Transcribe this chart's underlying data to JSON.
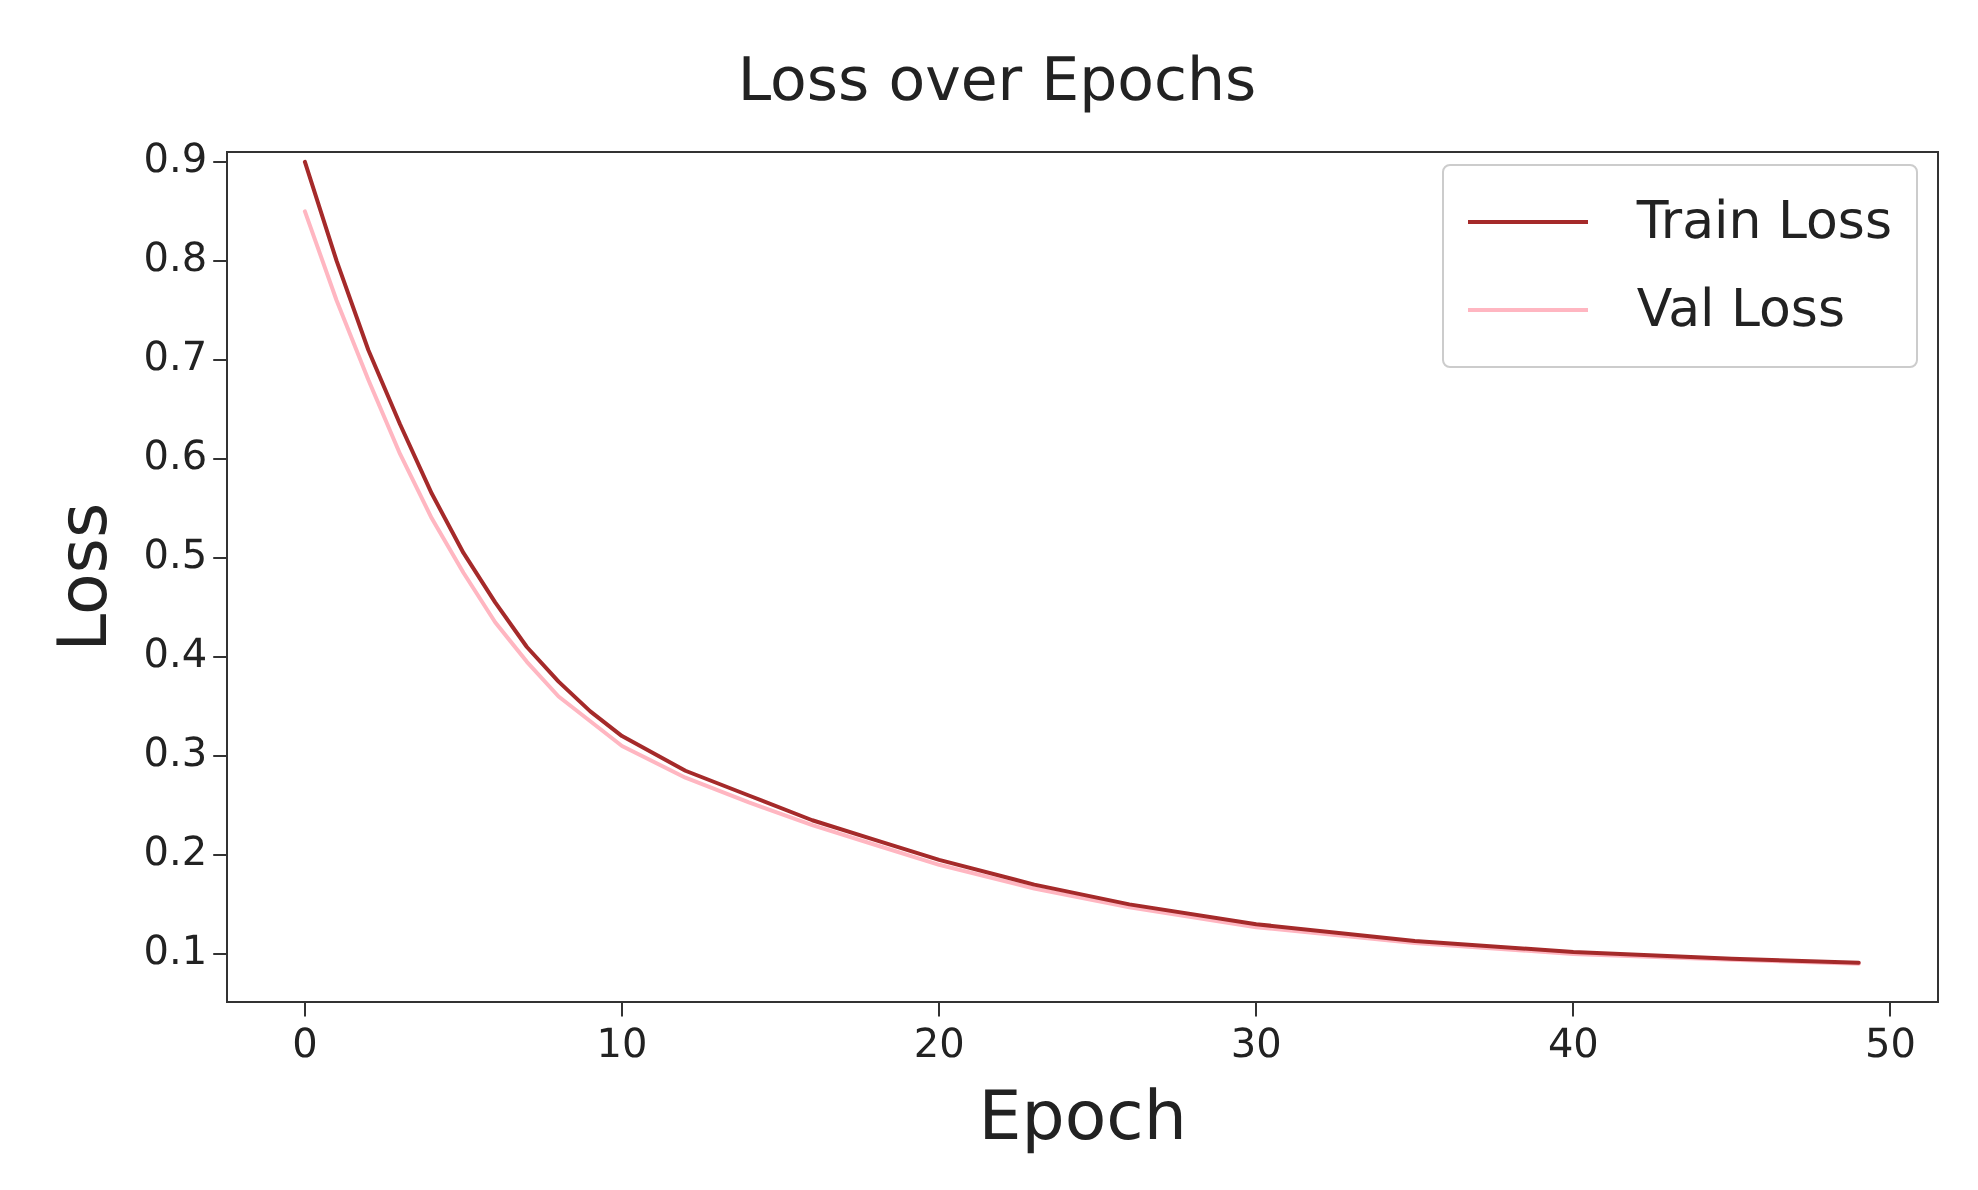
{
  "chart_data": {
    "type": "line",
    "title": "Loss over Epochs",
    "xlabel": "Epoch",
    "ylabel": "Loss",
    "xlim": [
      -2.45,
      51.5
    ],
    "xticks": [
      0,
      10,
      20,
      30,
      40,
      50
    ],
    "ylim": [
      0.051,
      0.91
    ],
    "yticks": [
      0.1,
      0.2,
      0.3,
      0.4,
      0.5,
      0.6,
      0.7,
      0.8,
      0.9
    ],
    "grid": false,
    "legend": "top right",
    "line_style": "solid",
    "marker": "none",
    "series": [
      {
        "name": "Train Loss",
        "color": "#a52a2a",
        "x": [
          0,
          1,
          2,
          3,
          4,
          5,
          6,
          7,
          8,
          9,
          10,
          12,
          14,
          16,
          18,
          20,
          23,
          26,
          30,
          35,
          40,
          45,
          49
        ],
        "values": [
          0.9,
          0.8,
          0.71,
          0.635,
          0.565,
          0.505,
          0.455,
          0.41,
          0.375,
          0.345,
          0.32,
          0.285,
          0.26,
          0.235,
          0.215,
          0.195,
          0.17,
          0.15,
          0.13,
          0.113,
          0.102,
          0.095,
          0.091
        ]
      },
      {
        "name": "Val Loss",
        "color": "#ffb6c1",
        "x": [
          0,
          1,
          2,
          3,
          4,
          5,
          6,
          7,
          8,
          9,
          10,
          12,
          14,
          16,
          18,
          20,
          23,
          26,
          30,
          35,
          40,
          45,
          49
        ],
        "values": [
          0.85,
          0.76,
          0.68,
          0.605,
          0.54,
          0.485,
          0.435,
          0.395,
          0.36,
          0.335,
          0.31,
          0.278,
          0.253,
          0.23,
          0.21,
          0.19,
          0.166,
          0.147,
          0.127,
          0.111,
          0.1,
          0.094,
          0.09
        ]
      }
    ]
  }
}
